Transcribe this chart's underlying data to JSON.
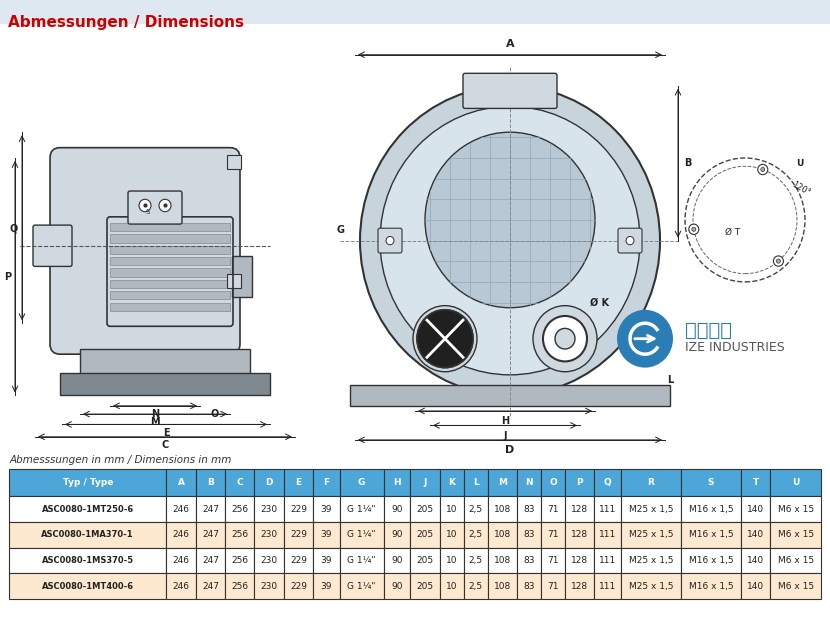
{
  "title": "Abmessungen / Dimensions",
  "subtitle": "Abmesssungen in mm / Dimensions in mm",
  "bg_color": "#ffffff",
  "header_bg": "#4da6d8",
  "row_bg_alt": "#fde8d0",
  "row_bg_white": "#ffffff",
  "table_border": "#333333",
  "columns": [
    "Typ / Type",
    "A",
    "B",
    "C",
    "D",
    "E",
    "F",
    "G",
    "H",
    "J",
    "K",
    "L",
    "M",
    "N",
    "O",
    "P",
    "Q",
    "R",
    "S",
    "T",
    "U"
  ],
  "rows": [
    [
      "ASC0080-1MT250-6",
      "246",
      "247",
      "256",
      "230",
      "229",
      "39",
      "G 1¼\"",
      "90",
      "205",
      "10",
      "2,5",
      "108",
      "83",
      "71",
      "128",
      "111",
      "M25 x 1,5",
      "M16 x 1,5",
      "140",
      "M6 x 15"
    ],
    [
      "ASC0080-1MA370-1",
      "246",
      "247",
      "256",
      "230",
      "229",
      "39",
      "G 1¼\"",
      "90",
      "205",
      "10",
      "2,5",
      "108",
      "83",
      "71",
      "128",
      "111",
      "M25 x 1,5",
      "M16 x 1,5",
      "140",
      "M6 x 15"
    ],
    [
      "ASC0080-1MS370-5",
      "246",
      "247",
      "256",
      "230",
      "229",
      "39",
      "G 1¼\"",
      "90",
      "205",
      "10",
      "2,5",
      "108",
      "83",
      "71",
      "128",
      "111",
      "M25 x 1,5",
      "M16 x 1,5",
      "140",
      "M6 x 15"
    ],
    [
      "ASC0080-1MT400-6",
      "246",
      "247",
      "256",
      "230",
      "229",
      "39",
      "G 1¼\"",
      "90",
      "205",
      "10",
      "2,5",
      "108",
      "83",
      "71",
      "128",
      "111",
      "M25 x 1,5",
      "M16 x 1,5",
      "140",
      "M6 x 15"
    ]
  ],
  "logo_text1": "爱泽工业",
  "logo_text2": "IZE INDUSTRIES",
  "diagram_bg": "#e8eef4"
}
